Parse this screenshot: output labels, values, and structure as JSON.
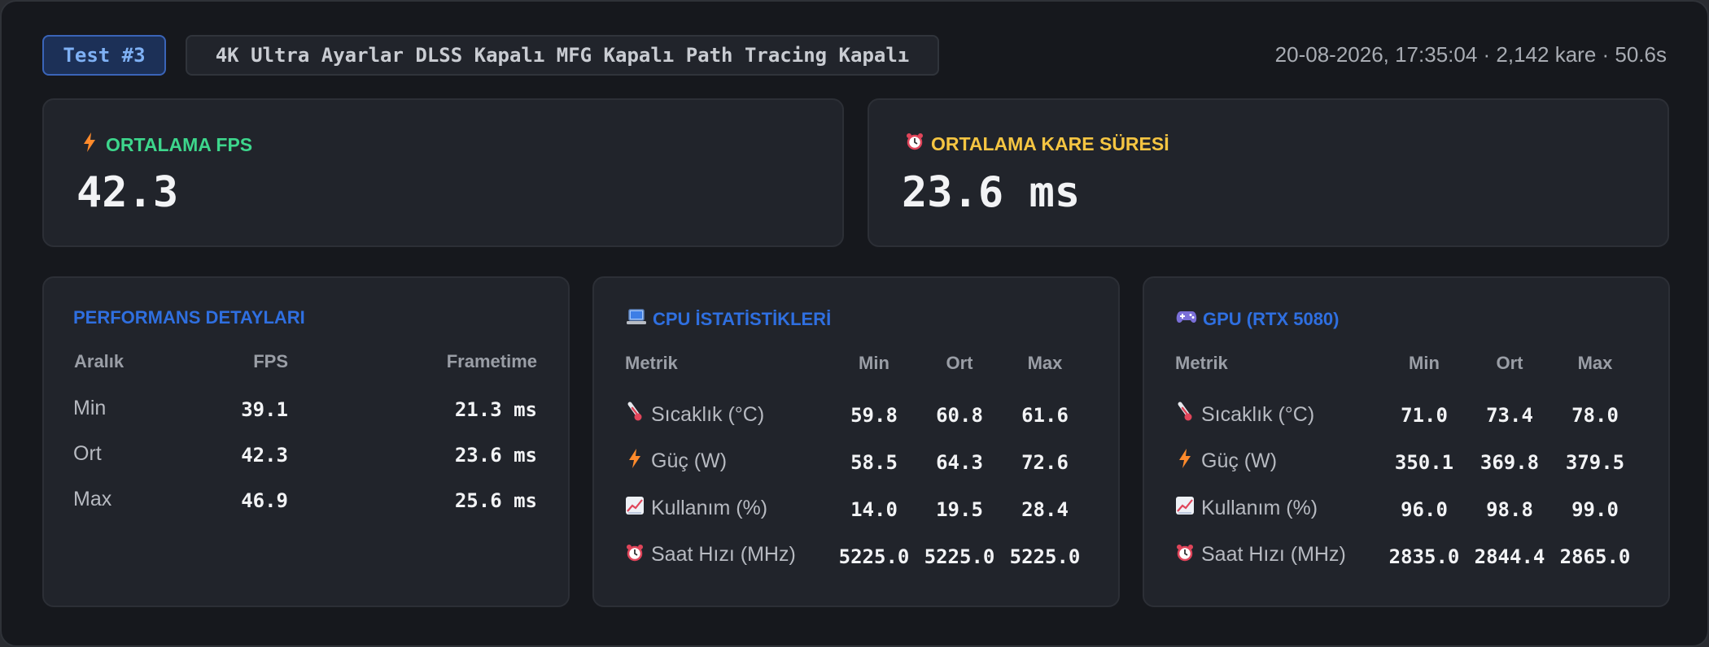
{
  "header": {
    "test_badge": "Test #3",
    "settings": "4K Ultra Ayarlar DLSS Kapalı MFG Kapalı Path Tracing Kapalı",
    "meta": "20-08-2026, 17:35:04 · 2,142 kare · 50.6s"
  },
  "kpis": {
    "fps": {
      "label": "ORTALAMA FPS",
      "value": "42.3",
      "icon": "lightning-icon",
      "color": "#3dd68c"
    },
    "frametime": {
      "label": "ORTALAMA KARE SÜRESİ",
      "value": "23.6 ms",
      "icon": "alarm-clock-icon",
      "color": "#f5c542"
    }
  },
  "performance": {
    "title": "PERFORMANS DETAYLARI",
    "headers": [
      "Aralık",
      "FPS",
      "Frametime"
    ],
    "rows": [
      {
        "label": "Min",
        "fps": "39.1",
        "frametime": "21.3 ms"
      },
      {
        "label": "Ort",
        "fps": "42.3",
        "frametime": "23.6 ms"
      },
      {
        "label": "Max",
        "fps": "46.9",
        "frametime": "25.6 ms"
      }
    ]
  },
  "cpu": {
    "title": "CPU İSTATİSTİKLERİ",
    "icon": "laptop-icon",
    "headers": [
      "Metrik",
      "Min",
      "Ort",
      "Max"
    ],
    "rows": [
      {
        "icon": "thermometer-icon",
        "label": "Sıcaklık (°C)",
        "min": "59.8",
        "avg": "60.8",
        "max": "61.6"
      },
      {
        "icon": "lightning-icon",
        "label": "Güç (W)",
        "min": "58.5",
        "avg": "64.3",
        "max": "72.6"
      },
      {
        "icon": "chart-increasing-icon",
        "label": "Kullanım (%)",
        "min": "14.0",
        "avg": "19.5",
        "max": "28.4"
      },
      {
        "icon": "alarm-clock-icon",
        "label": "Saat Hızı (MHz)",
        "min": "5225.0",
        "avg": "5225.0",
        "max": "5225.0"
      }
    ]
  },
  "gpu": {
    "title": "GPU (RTX 5080)",
    "icon": "gamepad-icon",
    "headers": [
      "Metrik",
      "Min",
      "Ort",
      "Max"
    ],
    "rows": [
      {
        "icon": "thermometer-icon",
        "label": "Sıcaklık (°C)",
        "min": "71.0",
        "avg": "73.4",
        "max": "78.0"
      },
      {
        "icon": "lightning-icon",
        "label": "Güç (W)",
        "min": "350.1",
        "avg": "369.8",
        "max": "379.5"
      },
      {
        "icon": "chart-increasing-icon",
        "label": "Kullanım (%)",
        "min": "96.0",
        "avg": "98.8",
        "max": "99.0"
      },
      {
        "icon": "alarm-clock-icon",
        "label": "Saat Hızı (MHz)",
        "min": "2835.0",
        "avg": "2844.4",
        "max": "2865.0"
      }
    ]
  }
}
